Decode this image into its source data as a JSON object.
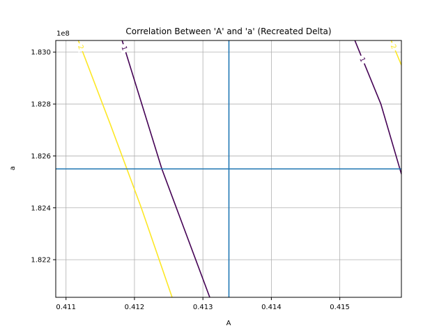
{
  "chart_data": {
    "type": "contour",
    "title": "Correlation Between 'A' and 'a' (Recreated Delta)",
    "xlabel": "A",
    "ylabel": "a",
    "y_offset_label": "1e8",
    "xlim": [
      0.41085,
      0.4159
    ],
    "ylim": [
      1.82055,
      1.83045
    ],
    "x_ticks": [
      0.411,
      0.412,
      0.413,
      0.414,
      0.415
    ],
    "x_tick_labels": [
      "0.411",
      "0.412",
      "0.413",
      "0.414",
      "0.415"
    ],
    "y_ticks": [
      1.822,
      1.824,
      1.826,
      1.828,
      1.83
    ],
    "y_tick_labels": [
      "1.822",
      "1.824",
      "1.826",
      "1.828",
      "1.830"
    ],
    "grid": true,
    "contour_lines": [
      {
        "level_label": "2",
        "color": "#fde725",
        "points": [
          [
            0.41118,
            1.83045
          ],
          [
            0.41165,
            1.8272
          ],
          [
            0.4121,
            1.824
          ],
          [
            0.41255,
            1.82055
          ]
        ],
        "label_at": 0
      },
      {
        "level_label": "1",
        "color": "#440154",
        "points": [
          [
            0.41182,
            1.83045
          ],
          [
            0.4124,
            1.8255
          ],
          [
            0.4131,
            1.82055
          ]
        ],
        "label_at": 0
      },
      {
        "level_label": "1",
        "color": "#440154",
        "points": [
          [
            0.41522,
            1.83045
          ],
          [
            0.4156,
            1.828
          ],
          [
            0.4159,
            1.8253
          ]
        ],
        "label_at": 0
      },
      {
        "level_label": "2",
        "color": "#fde725",
        "points": [
          [
            0.41575,
            1.83045
          ],
          [
            0.4159,
            1.8295
          ]
        ],
        "label_at": 0
      }
    ],
    "reference_lines": {
      "color": "#1f77b4",
      "x": 0.41338,
      "y": 1.8255
    }
  }
}
